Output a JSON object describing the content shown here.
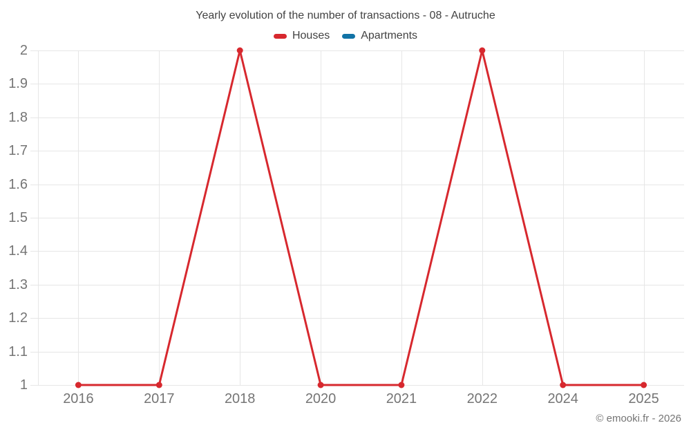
{
  "credit": "© emooki.fr - 2026",
  "chart_data": {
    "type": "line",
    "title": "Yearly evolution of the number of transactions - 08 - Autruche",
    "categories": [
      "2016",
      "2017",
      "2018",
      "2020",
      "2021",
      "2022",
      "2024",
      "2025"
    ],
    "series": [
      {
        "name": "Houses",
        "color": "#d7282e",
        "values": [
          1,
          1,
          2,
          1,
          1,
          2,
          1,
          1
        ]
      },
      {
        "name": "Apartments",
        "color": "#1173a6",
        "values": []
      }
    ],
    "xlabel": "",
    "ylabel": "",
    "ylim": [
      1,
      2
    ],
    "y_ticks": [
      "1",
      "1.1",
      "1.2",
      "1.3",
      "1.4",
      "1.5",
      "1.6",
      "1.7",
      "1.8",
      "1.9",
      "2"
    ],
    "grid": true,
    "legend_position": "top",
    "grid_color": "#e6e6e6",
    "axis_label_color": "#757575",
    "title_color": "#424242"
  }
}
